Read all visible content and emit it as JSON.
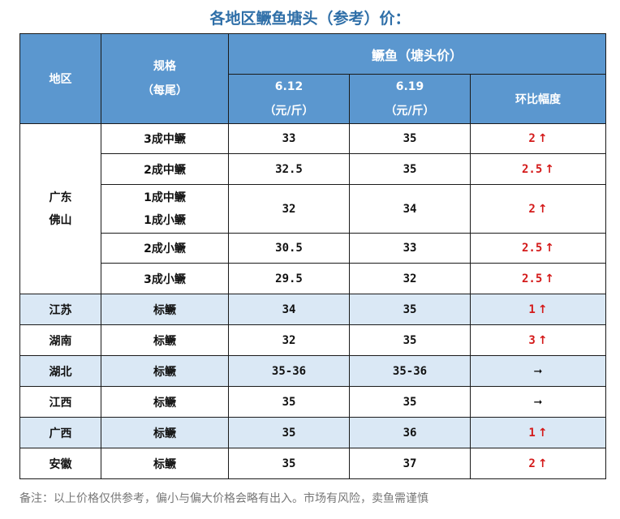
{
  "title": "各地区鳜鱼塘头（参考）价：",
  "header": {
    "region": "地区",
    "spec": "规格",
    "spec_unit": "（每尾）",
    "group": "鳜鱼（塘头价）",
    "date1": "6.12",
    "date1_unit": "（元/斤）",
    "date2": "6.19",
    "date2_unit": "（元/斤）",
    "change": "环比幅度"
  },
  "guangdong": {
    "region_line1": "广东",
    "region_line2": "佛山",
    "rows": [
      {
        "spec": "3成中鳜",
        "p1": "33",
        "p2": "35",
        "change": "2"
      },
      {
        "spec": "2成中鳜",
        "p1": "32.5",
        "p2": "35",
        "change": "2.5"
      },
      {
        "spec_line1": "1成中鳜",
        "spec_line2": "1成小鳜",
        "p1": "32",
        "p2": "34",
        "change": "2"
      },
      {
        "spec": "2成小鳜",
        "p1": "30.5",
        "p2": "33",
        "change": "2.5"
      },
      {
        "spec": "3成小鳜",
        "p1": "29.5",
        "p2": "32",
        "change": "2.5"
      }
    ]
  },
  "others": [
    {
      "region": "江苏",
      "spec": "标鳜",
      "p1": "34",
      "p2": "35",
      "change": "1",
      "trend": "up"
    },
    {
      "region": "湖南",
      "spec": "标鳜",
      "p1": "32",
      "p2": "35",
      "change": "3",
      "trend": "up"
    },
    {
      "region": "湖北",
      "spec": "标鳜",
      "p1": "35-36",
      "p2": "35-36",
      "change": "",
      "trend": "flat"
    },
    {
      "region": "江西",
      "spec": "标鳜",
      "p1": "35",
      "p2": "35",
      "change": "",
      "trend": "flat"
    },
    {
      "region": "广西",
      "spec": "标鳜",
      "p1": "35",
      "p2": "36",
      "change": "1",
      "trend": "up"
    },
    {
      "region": "安徽",
      "spec": "标鳜",
      "p1": "35",
      "p2": "37",
      "change": "2",
      "trend": "up"
    }
  ],
  "icons": {
    "up": "arrow-up-icon",
    "flat": "arrow-right-icon"
  },
  "colors": {
    "header_bg": "#5b97cf",
    "row_highlight": "#dae8f5",
    "up_red": "#d41a1a",
    "title_blue": "#2f6fa8"
  },
  "note": "备注：以上价格仅供参考，偏小与偏大价格会略有出入。市场有风险，卖鱼需谨慎"
}
